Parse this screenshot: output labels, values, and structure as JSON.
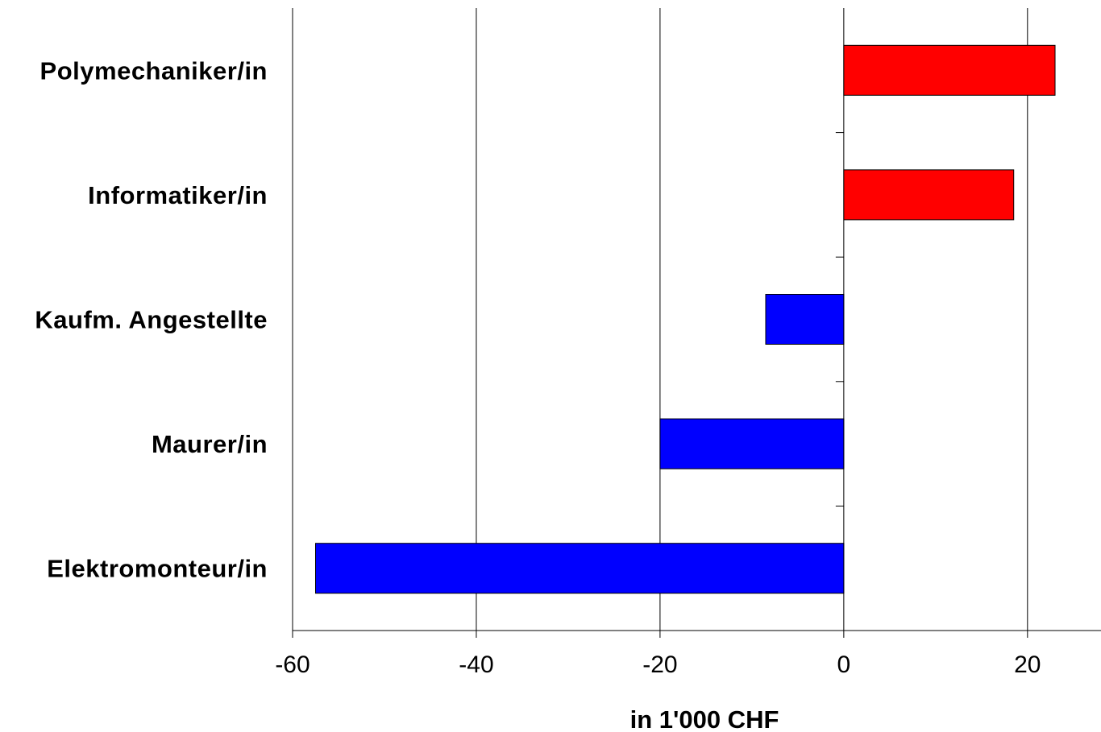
{
  "chart_data": {
    "type": "bar",
    "orientation": "horizontal",
    "categories": [
      "Polymechaniker/in",
      "Informatiker/in",
      "Kaufm. Angestellte",
      "Maurer/in",
      "Elektromonteur/in"
    ],
    "values": [
      23,
      18.5,
      -8.5,
      -20,
      -57.5
    ],
    "colors": [
      "#ff0000",
      "#ff0000",
      "#0000ff",
      "#0000ff",
      "#0000ff"
    ],
    "xlabel": "in 1'000 CHF",
    "xlim": [
      -60,
      28
    ],
    "xticks": [
      -60,
      -40,
      -20,
      0,
      20
    ],
    "xtick_labels": [
      "-60",
      "-40",
      "-20",
      "0",
      "20"
    ],
    "grid": "vertical",
    "legend": "none"
  }
}
